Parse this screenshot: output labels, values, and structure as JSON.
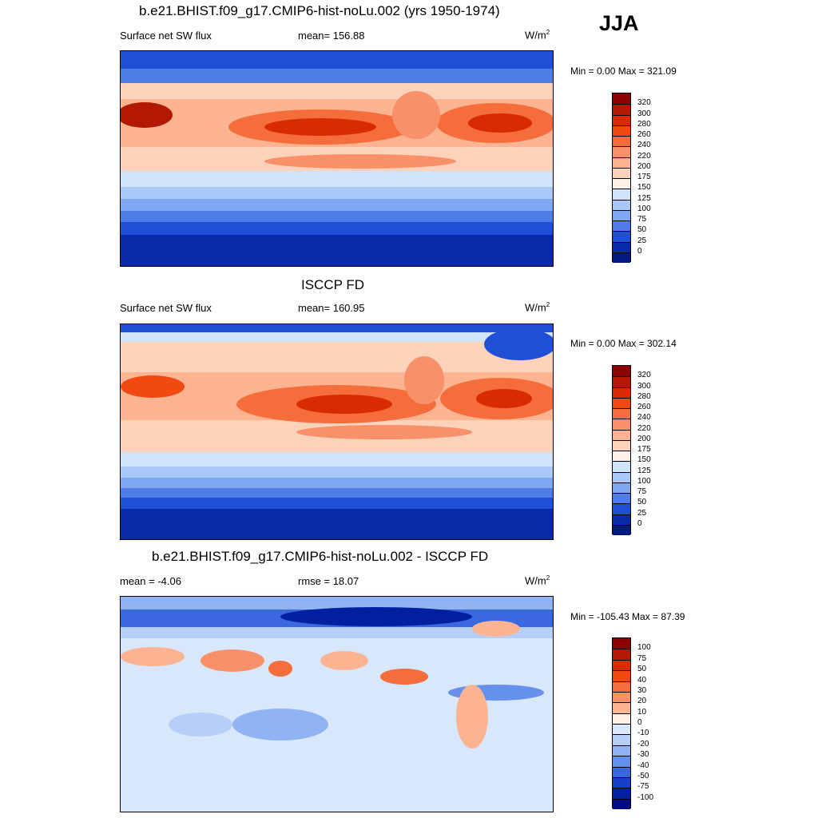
{
  "season": "JJA",
  "panels": [
    {
      "title": "b.e21.BHIST.f09_g17.CMIP6-hist-noLu.002 (yrs 1950-1974)",
      "left_label": "Surface net SW flux",
      "center_label": "mean= 156.88",
      "units": "W/m",
      "units_sup": "2",
      "minmax": "Min =   0.00 Max = 321.09",
      "kind": "abs"
    },
    {
      "title": "ISCCP FD",
      "left_label": "Surface net SW flux",
      "center_label": "mean= 160.95",
      "units": "W/m",
      "units_sup": "2",
      "minmax": "Min =   0.00 Max = 302.14",
      "kind": "abs"
    },
    {
      "title": "b.e21.BHIST.f09_g17.CMIP6-hist-noLu.002 - ISCCP FD",
      "left_label": "mean =  -4.06",
      "center_label": "rmse =  18.07",
      "units": "W/m",
      "units_sup": "2",
      "minmax": "Min = -105.43 Max =  87.39",
      "kind": "diff"
    }
  ],
  "colorbars": {
    "abs": {
      "labels": [
        "320",
        "300",
        "280",
        "260",
        "240",
        "220",
        "200",
        "175",
        "150",
        "125",
        "100",
        "75",
        "50",
        "25",
        "0"
      ],
      "colors": [
        "#8b0000",
        "#b31800",
        "#d92b00",
        "#f04a10",
        "#f46d3a",
        "#f8916a",
        "#fbb392",
        "#fcd2bb",
        "#fdf0e6",
        "#cfe3fb",
        "#a8c8f8",
        "#7fa8f2",
        "#4e7de8",
        "#1f4fd6",
        "#0a2ba8",
        "#001a80"
      ]
    },
    "diff": {
      "labels": [
        "100",
        "75",
        "50",
        "40",
        "30",
        "20",
        "10",
        "0",
        "-10",
        "-20",
        "-30",
        "-40",
        "-50",
        "-75",
        "-100"
      ],
      "colors": [
        "#8b0000",
        "#b31800",
        "#d92b00",
        "#f04a10",
        "#f46d3a",
        "#f8916a",
        "#fbb392",
        "#fdf0e6",
        "#d8e7fb",
        "#b5cff8",
        "#8fb3f3",
        "#6591ec",
        "#3a68df",
        "#1540c9",
        "#0020a0",
        "#000c80"
      ]
    }
  },
  "chart_data": [
    {
      "type": "heatmap",
      "title": "b.e21.BHIST.f09_g17.CMIP6-hist-noLu.002 (yrs 1950-1974)",
      "variable": "Surface net SW flux",
      "units": "W/m2",
      "mean": 156.88,
      "min": 0.0,
      "max": 321.09,
      "levels": [
        0,
        25,
        50,
        75,
        100,
        125,
        150,
        175,
        200,
        220,
        240,
        260,
        280,
        300,
        320
      ]
    },
    {
      "type": "heatmap",
      "title": "ISCCP FD",
      "variable": "Surface net SW flux",
      "units": "W/m2",
      "mean": 160.95,
      "min": 0.0,
      "max": 302.14,
      "levels": [
        0,
        25,
        50,
        75,
        100,
        125,
        150,
        175,
        200,
        220,
        240,
        260,
        280,
        300,
        320
      ]
    },
    {
      "type": "heatmap",
      "title": "b.e21.BHIST.f09_g17.CMIP6-hist-noLu.002 - ISCCP FD",
      "units": "W/m2",
      "mean": -4.06,
      "rmse": 18.07,
      "min": -105.43,
      "max": 87.39,
      "levels": [
        -100,
        -75,
        -50,
        -40,
        -30,
        -20,
        -10,
        0,
        10,
        20,
        30,
        40,
        50,
        75,
        100
      ]
    }
  ]
}
